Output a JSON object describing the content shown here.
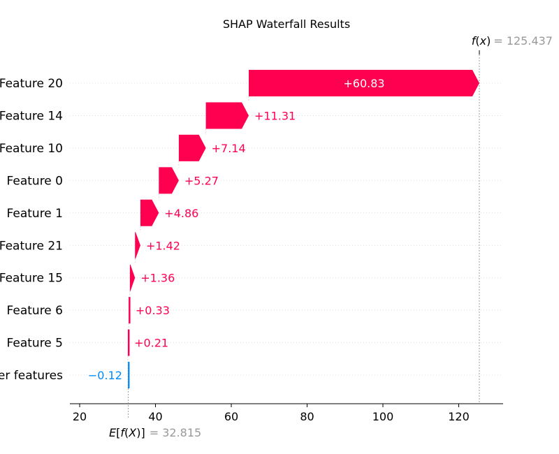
{
  "chart_data": {
    "type": "bar",
    "subtype": "shap-waterfall",
    "title": "SHAP Waterfall Results",
    "base_value": 32.815,
    "base_value_text": "32.815",
    "output_value": 125.437,
    "output_value_text": "125.437",
    "features": [
      {
        "name": "Feature 20",
        "value": 60.83,
        "label": "+60.83"
      },
      {
        "name": "Feature 14",
        "value": 11.31,
        "label": "+11.31"
      },
      {
        "name": "Feature 10",
        "value": 7.14,
        "label": "+7.14"
      },
      {
        "name": "Feature 0",
        "value": 5.27,
        "label": "+5.27"
      },
      {
        "name": "Feature 1",
        "value": 4.86,
        "label": "+4.86"
      },
      {
        "name": "Feature 21",
        "value": 1.42,
        "label": "+1.42"
      },
      {
        "name": "Feature 15",
        "value": 1.36,
        "label": "+1.36"
      },
      {
        "name": "Feature 6",
        "value": 0.33,
        "label": "+0.33"
      },
      {
        "name": "Feature 5",
        "value": 0.21,
        "label": "+0.21"
      },
      {
        "name": "er features",
        "value": -0.12,
        "label": "−0.12"
      }
    ],
    "xticks": [
      20,
      40,
      60,
      80,
      100,
      120
    ],
    "xlim": [
      16,
      131
    ],
    "colors": {
      "positive": "#ff0051",
      "negative": "#008bfb"
    }
  }
}
